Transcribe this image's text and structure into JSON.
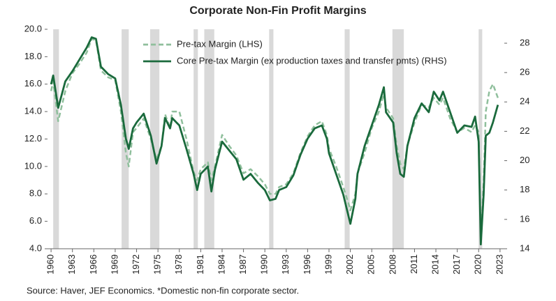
{
  "chart_data": {
    "type": "line",
    "title": "Corporate Non-Fin Profit Margins",
    "note": "Source: Haver, JEF Economics. *Domestic non-fin corporate sector.",
    "xlim": [
      1959.5,
      2023.6
    ],
    "xticks": [
      1960,
      1963,
      1966,
      1969,
      1972,
      1975,
      1978,
      1981,
      1984,
      1987,
      1990,
      1993,
      1996,
      1999,
      2002,
      2005,
      2008,
      2011,
      2014,
      2017,
      2020,
      2023
    ],
    "ylim": [
      4,
      20
    ],
    "yticks": [
      {
        "value": 4,
        "label": "4.0"
      },
      {
        "value": 6,
        "label": "6.0"
      },
      {
        "value": 8,
        "label": "8.0"
      },
      {
        "value": 10,
        "label": "10.0"
      },
      {
        "value": 12,
        "label": "12.0"
      },
      {
        "value": 14,
        "label": "14.0"
      },
      {
        "value": 16,
        "label": "16.0"
      },
      {
        "value": 18,
        "label": "18.0"
      },
      {
        "value": 20,
        "label": "20.0"
      }
    ],
    "y2lim": [
      14,
      28.95
    ],
    "y2ticks": [
      14,
      16,
      18,
      20,
      22,
      24,
      26,
      28
    ],
    "shaded_periods": [
      [
        1960.3,
        1961.1
      ],
      [
        1969.9,
        1970.9
      ],
      [
        1973.9,
        1975.2
      ],
      [
        1980.0,
        1980.6
      ],
      [
        1981.5,
        1982.9
      ],
      [
        1990.6,
        1991.2
      ],
      [
        2001.2,
        2001.9
      ],
      [
        2007.9,
        2009.5
      ],
      [
        2020.0,
        2020.5
      ]
    ],
    "shade_color": "#d9d9d9",
    "legend": "top-left",
    "x": [
      1960,
      1960.3,
      1961,
      1962,
      1963,
      1964,
      1965,
      1965.7,
      1966.3,
      1967,
      1968,
      1969,
      1969.8,
      1970.5,
      1970.9,
      1971.5,
      1972,
      1973,
      1974,
      1974.8,
      1975.5,
      1976,
      1976.7,
      1977,
      1978,
      1979,
      1980,
      1980.5,
      1981,
      1982,
      1982.5,
      1983,
      1984,
      1985,
      1986,
      1987,
      1988,
      1989,
      1990,
      1990.7,
      1991.5,
      1992,
      1993,
      1994,
      1995,
      1996,
      1997,
      1998,
      1998.7,
      1999,
      2000,
      2001,
      2001.8,
      2002,
      2002.7,
      2003,
      2004,
      2005,
      2006,
      2006.7,
      2007,
      2008,
      2008.5,
      2009,
      2009.5,
      2010,
      2011,
      2012,
      2013,
      2013.7,
      2014.5,
      2015,
      2016,
      2017,
      2018,
      2019,
      2019.5,
      2020,
      2020.3,
      2020.7,
      2021,
      2021.5,
      2022,
      2022.7
    ],
    "series": [
      {
        "name": "Pre-tax Margin (LHS)",
        "color": "#8fbf9c",
        "dashed": true,
        "values": [
          15.5,
          16.2,
          13.3,
          15.5,
          16.8,
          17.5,
          18.3,
          19.3,
          19.2,
          17.0,
          16.5,
          16.3,
          14.0,
          11.0,
          10.0,
          12.5,
          12.8,
          13.5,
          12.0,
          10.5,
          11.5,
          13.8,
          12.8,
          14.0,
          14.0,
          12.0,
          9.6,
          9.0,
          9.8,
          10.3,
          9.0,
          10.0,
          12.3,
          11.5,
          10.8,
          9.5,
          9.8,
          9.3,
          8.7,
          8.0,
          8.0,
          8.5,
          8.7,
          9.5,
          11.0,
          12.2,
          13.0,
          13.3,
          12.3,
          11.3,
          10.0,
          8.5,
          7.2,
          6.8,
          8.0,
          9.5,
          11.0,
          12.8,
          14.0,
          15.3,
          14.3,
          13.5,
          11.5,
          10.2,
          9.8,
          11.5,
          13.2,
          14.5,
          14.3,
          15.0,
          14.5,
          15.0,
          13.5,
          12.5,
          12.8,
          12.5,
          13.0,
          12.5,
          4.5,
          8.8,
          14.0,
          15.5,
          16.0,
          15.0
        ]
      },
      {
        "name": "Core Pre-tax Margin (ex production taxes and transfer pmts) (RHS)",
        "color": "#1a6a3c",
        "axis": "y2",
        "values": [
          25.2,
          25.8,
          23.6,
          25.4,
          26.1,
          26.9,
          27.7,
          28.4,
          28.3,
          26.4,
          25.9,
          25.6,
          23.8,
          21.5,
          20.8,
          22.2,
          22.6,
          23.2,
          21.7,
          19.8,
          21.0,
          22.9,
          22.2,
          22.9,
          22.4,
          20.8,
          19.1,
          18.0,
          19.1,
          19.6,
          17.9,
          19.4,
          21.3,
          20.7,
          20.1,
          18.7,
          19.1,
          18.5,
          18.0,
          17.3,
          17.4,
          18.0,
          18.2,
          19.0,
          20.4,
          21.5,
          22.2,
          22.4,
          21.5,
          20.5,
          19.1,
          17.7,
          16.1,
          15.7,
          17.4,
          19.1,
          21.0,
          22.4,
          23.8,
          25.0,
          23.3,
          22.6,
          20.5,
          19.1,
          18.9,
          21.0,
          22.9,
          23.9,
          23.3,
          24.7,
          24.1,
          24.7,
          23.3,
          21.9,
          22.4,
          22.3,
          23.0,
          21.3,
          14.3,
          17.7,
          21.7,
          21.9,
          22.6,
          23.8
        ]
      }
    ]
  }
}
